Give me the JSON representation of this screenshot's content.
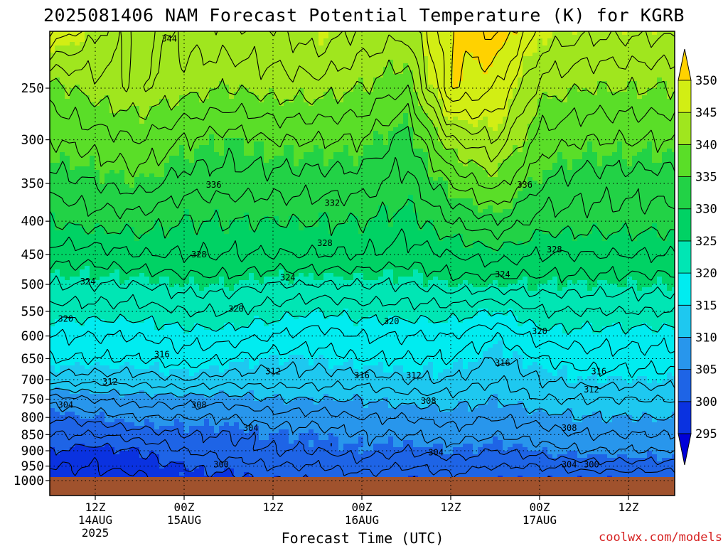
{
  "title": "2025081406 NAM Forecast Potential Temperature (K) for KGRB",
  "credit": "coolwx.com/models",
  "chart_data": {
    "type": "contour",
    "title": "2025081406 NAM Forecast Potential Temperature (K) for KGRB",
    "xlabel": "Forecast Time (UTC)",
    "ylabel": "",
    "y_scale": "log-pressure (inverted)",
    "y_ticks": [
      250,
      300,
      350,
      400,
      450,
      500,
      550,
      600,
      650,
      700,
      750,
      800,
      850,
      900,
      950,
      1000
    ],
    "y_tick_labels": [
      "250",
      "300",
      "350",
      "400",
      "450",
      "500",
      "550",
      "600",
      "650",
      "700",
      "750",
      "800",
      "850",
      "900",
      "950",
      "1000"
    ],
    "ylim": [
      1030,
      200
    ],
    "x_tick_hours": [
      12,
      24,
      36,
      48,
      60,
      72,
      84
    ],
    "xlim": [
      6,
      90
    ],
    "x_ticks": [
      {
        "top": "12Z",
        "mid": "14AUG",
        "bot": "2025"
      },
      {
        "top": "00Z",
        "mid": "15AUG",
        "bot": ""
      },
      {
        "top": "12Z",
        "mid": "",
        "bot": ""
      },
      {
        "top": "00Z",
        "mid": "16AUG",
        "bot": ""
      },
      {
        "top": "12Z",
        "mid": "",
        "bot": ""
      },
      {
        "top": "00Z",
        "mid": "17AUG",
        "bot": ""
      },
      {
        "top": "12Z",
        "mid": "",
        "bot": ""
      }
    ],
    "grid": true,
    "surface_pressure": 1000,
    "colorbar": {
      "levels": [
        295,
        300,
        305,
        310,
        315,
        320,
        325,
        330,
        335,
        340,
        345,
        350
      ],
      "labels": [
        "295",
        "300",
        "305",
        "310",
        "315",
        "320",
        "325",
        "330",
        "335",
        "340",
        "345",
        "350"
      ],
      "colors": [
        "#0000d8",
        "#0a32e0",
        "#1e64e6",
        "#2896ec",
        "#1ec8f0",
        "#00ecf0",
        "#00e6b4",
        "#00d264",
        "#22d246",
        "#5ade28",
        "#a0e61e",
        "#d2ee14",
        "#ffff00",
        "#ffd200"
      ],
      "placement": "right"
    },
    "contour_labels": [
      {
        "value": 344,
        "hour": 22,
        "pressure": 210
      },
      {
        "value": 336,
        "hour": 28,
        "pressure": 352
      },
      {
        "value": 336,
        "hour": 70,
        "pressure": 352
      },
      {
        "value": 332,
        "hour": 44,
        "pressure": 375
      },
      {
        "value": 328,
        "hour": 26,
        "pressure": 450
      },
      {
        "value": 328,
        "hour": 43,
        "pressure": 432
      },
      {
        "value": 328,
        "hour": 74,
        "pressure": 442
      },
      {
        "value": 324,
        "hour": 11,
        "pressure": 495
      },
      {
        "value": 324,
        "hour": 38,
        "pressure": 488
      },
      {
        "value": 324,
        "hour": 67,
        "pressure": 483
      },
      {
        "value": 320,
        "hour": 8,
        "pressure": 565
      },
      {
        "value": 320,
        "hour": 31,
        "pressure": 545
      },
      {
        "value": 320,
        "hour": 52,
        "pressure": 570
      },
      {
        "value": 320,
        "hour": 72,
        "pressure": 590
      },
      {
        "value": 316,
        "hour": 21,
        "pressure": 640
      },
      {
        "value": 316,
        "hour": 48,
        "pressure": 690
      },
      {
        "value": 316,
        "hour": 67,
        "pressure": 660
      },
      {
        "value": 316,
        "hour": 80,
        "pressure": 680
      },
      {
        "value": 312,
        "hour": 14,
        "pressure": 705
      },
      {
        "value": 312,
        "hour": 36,
        "pressure": 680
      },
      {
        "value": 312,
        "hour": 55,
        "pressure": 690
      },
      {
        "value": 312,
        "hour": 79,
        "pressure": 725
      },
      {
        "value": 308,
        "hour": 26,
        "pressure": 765
      },
      {
        "value": 308,
        "hour": 57,
        "pressure": 755
      },
      {
        "value": 308,
        "hour": 76,
        "pressure": 830
      },
      {
        "value": 304,
        "hour": 8,
        "pressure": 765
      },
      {
        "value": 304,
        "hour": 33,
        "pressure": 830
      },
      {
        "value": 304,
        "hour": 58,
        "pressure": 905
      },
      {
        "value": 304,
        "hour": 76,
        "pressure": 945
      },
      {
        "value": 300,
        "hour": 29,
        "pressure": 945
      },
      {
        "value": 300,
        "hour": 79,
        "pressure": 945
      }
    ],
    "profiles": [
      {
        "pressure": 200,
        "theta_offsets": [
          349,
          345,
          341,
          343,
          344,
          344,
          346,
          344,
          343,
          350,
          353,
          346,
          345
        ]
      },
      {
        "pressure": 250,
        "theta_offsets": [
          339,
          341,
          342,
          341,
          340,
          341,
          341,
          340,
          338,
          350,
          348,
          341,
          340
        ]
      },
      {
        "pressure": 300,
        "theta_offsets": [
          336,
          337,
          338,
          336,
          335,
          336,
          336,
          336,
          333,
          342,
          344,
          337,
          336
        ]
      },
      {
        "pressure": 350,
        "theta_offsets": [
          333,
          334,
          335,
          333,
          333,
          333,
          333,
          333,
          331,
          336,
          339,
          334,
          333
        ]
      },
      {
        "pressure": 400,
        "theta_offsets": [
          330,
          331,
          331,
          330,
          330,
          330,
          330,
          330,
          329,
          332,
          334,
          331,
          331
        ]
      },
      {
        "pressure": 450,
        "theta_offsets": [
          327,
          327,
          328,
          328,
          328,
          328,
          328,
          328,
          327,
          328,
          329,
          328,
          328
        ]
      },
      {
        "pressure": 500,
        "theta_offsets": [
          324,
          324,
          324,
          325,
          325,
          324,
          324,
          324,
          324,
          325,
          325,
          325,
          325
        ]
      },
      {
        "pressure": 550,
        "theta_offsets": [
          321,
          321,
          321,
          322,
          322,
          321,
          320,
          321,
          321,
          321,
          320,
          322,
          322
        ]
      },
      {
        "pressure": 600,
        "theta_offsets": [
          318,
          318,
          318,
          319,
          319,
          318,
          317,
          318,
          318,
          318,
          316,
          319,
          319
        ]
      },
      {
        "pressure": 650,
        "theta_offsets": [
          316,
          316,
          316,
          317,
          316,
          315,
          315,
          316,
          316,
          316,
          314,
          316,
          317
        ]
      },
      {
        "pressure": 700,
        "theta_offsets": [
          313,
          313,
          313,
          314,
          313,
          313,
          313,
          313,
          314,
          314,
          312,
          314,
          315
        ]
      },
      {
        "pressure": 750,
        "theta_offsets": [
          307,
          308,
          309,
          309,
          309,
          310,
          310,
          310,
          311,
          311,
          310,
          312,
          312
        ]
      },
      {
        "pressure": 800,
        "theta_offsets": [
          304,
          305,
          306,
          306,
          306,
          307,
          307,
          308,
          308,
          309,
          308,
          309,
          310
        ]
      },
      {
        "pressure": 850,
        "theta_offsets": [
          302,
          302,
          303,
          304,
          304,
          305,
          305,
          306,
          306,
          307,
          306,
          307,
          308
        ]
      },
      {
        "pressure": 900,
        "theta_offsets": [
          300,
          299,
          300,
          302,
          303,
          304,
          304,
          305,
          304,
          305,
          304,
          305,
          306
        ]
      },
      {
        "pressure": 950,
        "theta_offsets": [
          298,
          298,
          299,
          300,
          301,
          302,
          302,
          303,
          302,
          303,
          302,
          302,
          303
        ]
      },
      {
        "pressure": 1000,
        "theta_offsets": [
          297,
          297,
          297,
          299,
          299,
          300,
          300,
          301,
          300,
          301,
          300,
          300,
          300
        ]
      }
    ],
    "profile_hours": [
      6,
      12,
      18,
      24,
      30,
      36,
      42,
      48,
      54,
      60,
      66,
      72,
      78
    ]
  }
}
